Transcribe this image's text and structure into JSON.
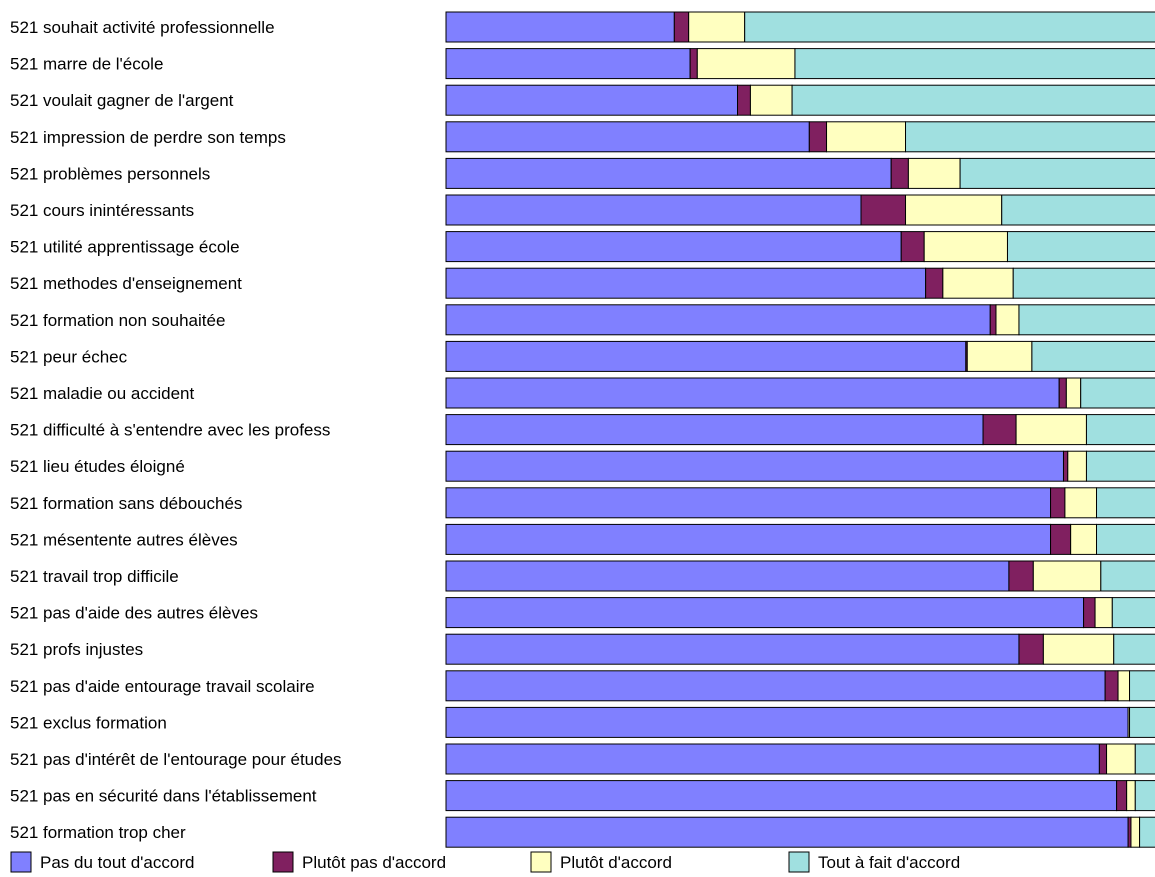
{
  "chart_data": {
    "type": "bar",
    "orientation": "horizontal",
    "stacked": "percent",
    "xlim": [
      0,
      100
    ],
    "grid": false,
    "legend_position": "bottom",
    "series": [
      {
        "name": "Pas du tout d'accord",
        "color": "#8080ff"
      },
      {
        "name": "Plutôt pas d'accord",
        "color": "#802060"
      },
      {
        "name": "Plutôt d'accord",
        "color": "#ffffc0"
      },
      {
        "name": "Tout à fait d'accord",
        "color": "#a0e0e0"
      }
    ],
    "rows": [
      {
        "n": "521",
        "label": "souhait activité professionnelle",
        "values": [
          31.8,
          2.0,
          7.8,
          58.4
        ]
      },
      {
        "n": "521",
        "label": "marre de l'école",
        "values": [
          34.0,
          1.0,
          13.6,
          51.4
        ]
      },
      {
        "n": "521",
        "label": "voulait gagner de l'argent",
        "values": [
          40.6,
          1.8,
          5.8,
          51.8
        ]
      },
      {
        "n": "521",
        "label": "impression de perdre son temps",
        "values": [
          50.6,
          2.4,
          11.0,
          36.0
        ]
      },
      {
        "n": "521",
        "label": "problèmes personnels",
        "values": [
          62.0,
          2.4,
          7.2,
          28.4
        ]
      },
      {
        "n": "521",
        "label": "cours inintéressants",
        "values": [
          57.8,
          6.2,
          13.4,
          22.6
        ]
      },
      {
        "n": "521",
        "label": "utilité apprentissage école",
        "values": [
          63.4,
          3.2,
          11.6,
          21.8
        ]
      },
      {
        "n": "521",
        "label": "methodes d'enseignement",
        "values": [
          66.8,
          2.4,
          9.8,
          21.0
        ]
      },
      {
        "n": "521",
        "label": "formation non souhaitée",
        "values": [
          75.8,
          0.8,
          3.2,
          20.2
        ]
      },
      {
        "n": "521",
        "label": "peur échec",
        "values": [
          72.4,
          0.2,
          9.0,
          18.4
        ]
      },
      {
        "n": "521",
        "label": "maladie ou accident",
        "values": [
          85.4,
          1.0,
          2.0,
          11.6
        ]
      },
      {
        "n": "521",
        "label": "difficulté à s'entendre avec les profess",
        "values": [
          74.8,
          4.6,
          9.8,
          10.8
        ]
      },
      {
        "n": "521",
        "label": "lieu études éloigné",
        "values": [
          86.0,
          0.6,
          2.6,
          10.8
        ]
      },
      {
        "n": "521",
        "label": "formation sans débouchés",
        "values": [
          84.2,
          2.0,
          4.4,
          9.4
        ]
      },
      {
        "n": "521",
        "label": "mésentente autres élèves",
        "values": [
          84.2,
          2.8,
          3.6,
          9.4
        ]
      },
      {
        "n": "521",
        "label": "travail trop difficile",
        "values": [
          78.4,
          3.4,
          9.4,
          8.8
        ]
      },
      {
        "n": "521",
        "label": "pas d'aide des autres élèves",
        "values": [
          88.8,
          1.6,
          2.4,
          7.2
        ]
      },
      {
        "n": "521",
        "label": "profs injustes",
        "values": [
          79.8,
          3.4,
          9.8,
          7.0
        ]
      },
      {
        "n": "521",
        "label": "pas d'aide entourage travail scolaire",
        "values": [
          91.8,
          1.8,
          1.6,
          4.8
        ]
      },
      {
        "n": "521",
        "label": "exclus formation",
        "values": [
          95.0,
          0.0,
          0.2,
          4.8
        ]
      },
      {
        "n": "521",
        "label": "pas d'intérêt de l'entourage pour études",
        "values": [
          91.0,
          1.0,
          4.0,
          4.0
        ]
      },
      {
        "n": "521",
        "label": "pas en sécurité dans l'établissement",
        "values": [
          93.4,
          1.4,
          1.2,
          4.0
        ]
      },
      {
        "n": "521",
        "label": "formation trop cher",
        "values": [
          95.0,
          0.4,
          1.2,
          3.4
        ]
      }
    ]
  }
}
